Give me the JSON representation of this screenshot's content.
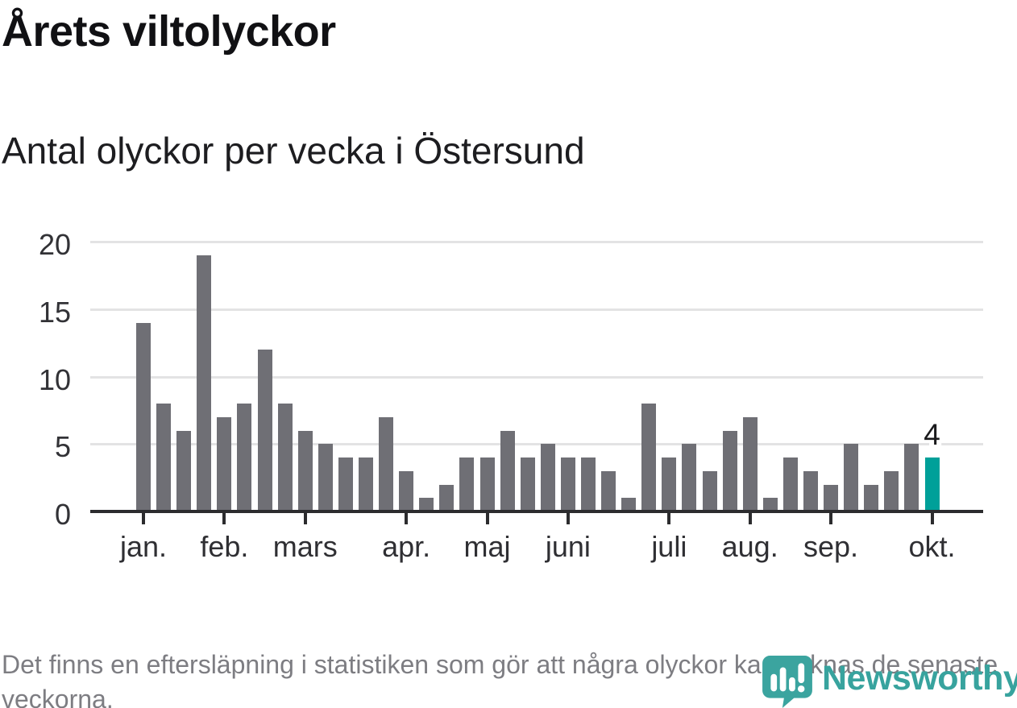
{
  "header": {
    "title": "Årets viltolyckor",
    "subtitle": "Antal olyckor per vecka i Östersund"
  },
  "chart_data": {
    "type": "bar",
    "title": "Årets viltolyckor",
    "subtitle": "Antal olyckor per vecka i Östersund",
    "x_unit": "vecka",
    "x": [
      1,
      2,
      3,
      4,
      5,
      6,
      7,
      8,
      9,
      10,
      11,
      12,
      13,
      14,
      15,
      16,
      17,
      18,
      19,
      20,
      21,
      22,
      23,
      24,
      25,
      26,
      27,
      28,
      29,
      30,
      31,
      32,
      33,
      34,
      35,
      36,
      37,
      38,
      39,
      40
    ],
    "values": [
      14,
      8,
      6,
      19,
      7,
      8,
      12,
      8,
      6,
      5,
      4,
      4,
      7,
      3,
      1,
      2,
      4,
      4,
      6,
      4,
      5,
      4,
      4,
      3,
      1,
      8,
      4,
      5,
      3,
      6,
      7,
      1,
      4,
      3,
      2,
      5,
      2,
      3,
      5,
      4
    ],
    "highlight_index": 39,
    "highlight_value_label": "4",
    "month_labels": [
      "jan.",
      "feb.",
      "mars",
      "apr.",
      "maj",
      "juni",
      "juli",
      "aug.",
      "sep.",
      "okt."
    ],
    "month_tick_indices": [
      0,
      4,
      8,
      13,
      17,
      21,
      26,
      30,
      34,
      39
    ],
    "yticks": [
      0,
      5,
      10,
      15,
      20
    ],
    "ylim": [
      0,
      20
    ],
    "grid": true,
    "legend": "none",
    "bar_color": "#6f6f75",
    "highlight_color": "#00a099"
  },
  "footer": {
    "note": "Det finns en eftersläpning i statistiken som gör att några olyckor kan saknas de senaste veckorna.",
    "logo_text": "Newsworthy"
  },
  "colors": {
    "bar": "#6f6f75",
    "highlight": "#00a099",
    "gridline": "#e3e3e4",
    "axis": "#2c2c2e",
    "logo_teal": "#3ba49f",
    "footnote_gray": "#7d7d82"
  }
}
